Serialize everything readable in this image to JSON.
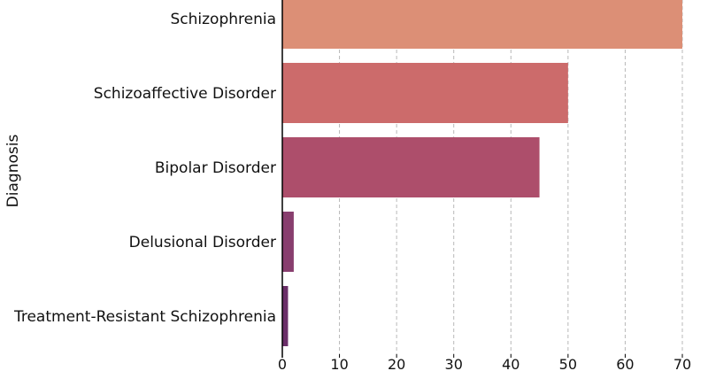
{
  "chart_data": {
    "type": "bar",
    "orientation": "horizontal",
    "categories": [
      "Schizophrenia",
      "Schizoaffective Disorder",
      "Bipolar Disorder",
      "Delusional Disorder",
      "Treatment-Resistant Schizophrenia"
    ],
    "values": [
      70,
      50,
      45,
      2,
      1
    ],
    "colors": [
      "#dc8f76",
      "#cc6b6b",
      "#ad4e6b",
      "#883e6e",
      "#6a2e68"
    ],
    "ylabel": "Diagnosis",
    "xlabel": "",
    "xlim": [
      0,
      74
    ],
    "xticks": [
      "0",
      "10",
      "20",
      "30",
      "40",
      "50",
      "60",
      "70"
    ],
    "xtick_values": [
      0,
      10,
      20,
      30,
      40,
      50,
      60,
      70
    ],
    "grid": "x-dashed"
  }
}
